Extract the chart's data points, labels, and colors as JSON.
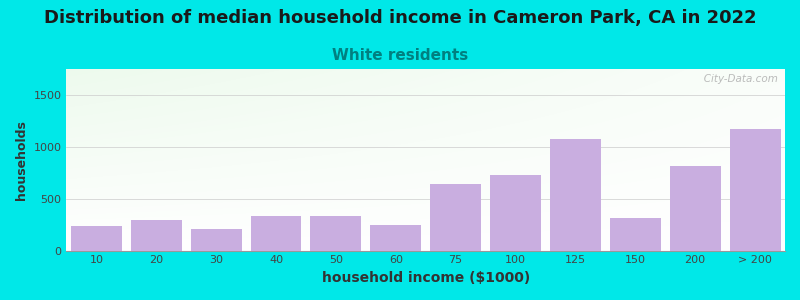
{
  "title": "Distribution of median household income in Cameron Park, CA in 2022",
  "subtitle": "White residents",
  "xlabel": "household income ($1000)",
  "ylabel": "households",
  "categories": [
    "10",
    "20",
    "30",
    "40",
    "50",
    "60",
    "75",
    "100",
    "125",
    "150",
    "200",
    "> 200"
  ],
  "values": [
    240,
    305,
    215,
    340,
    340,
    255,
    650,
    730,
    1075,
    320,
    820,
    1175
  ],
  "bar_color": "#c9aee0",
  "bar_edgecolor": "none",
  "background_outer": "#00e8e8",
  "background_inner_topleft": "#ddeedd",
  "background_inner_topright": "#f8f8f8",
  "background_inner_bottom": "#ffffff",
  "title_fontsize": 13,
  "title_color": "#1a1a1a",
  "subtitle_fontsize": 11,
  "subtitle_color": "#008080",
  "ylabel_color": "#333333",
  "xlabel_color": "#333333",
  "yticks": [
    0,
    500,
    1000,
    1500
  ],
  "ylim": [
    0,
    1750
  ],
  "watermark": "   City-Data.com"
}
